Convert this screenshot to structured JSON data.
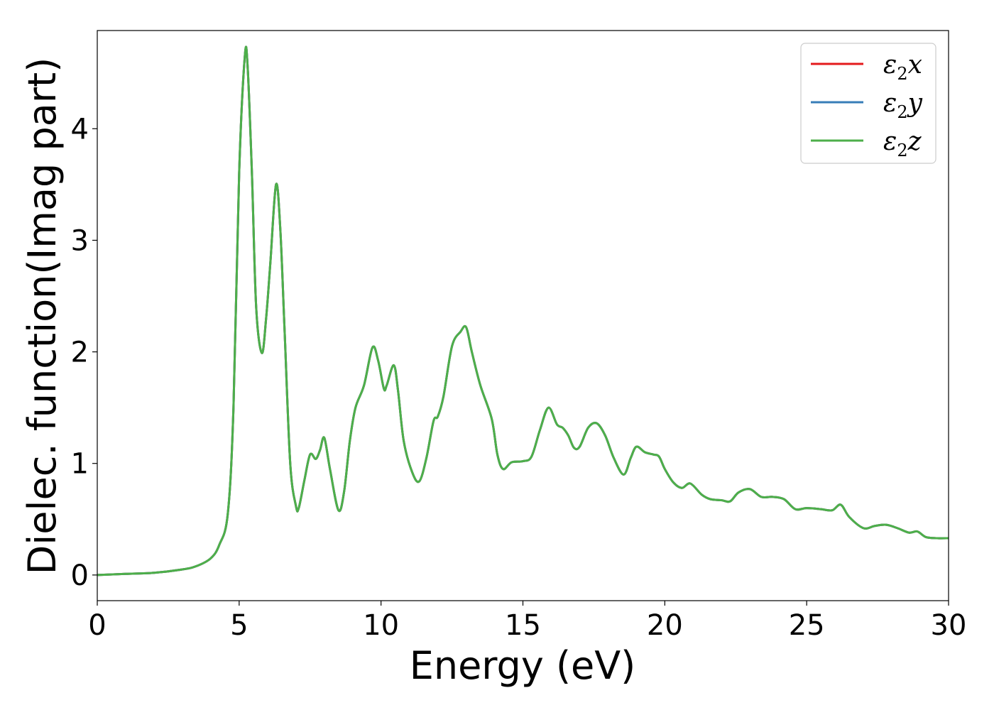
{
  "chart_data": {
    "type": "line",
    "xlabel": "Energy (eV)",
    "ylabel": "Dielec. function(Imag part)",
    "xlim": [
      0,
      30
    ],
    "ylim": [
      -0.23,
      4.88
    ],
    "xticks": [
      0,
      5,
      10,
      15,
      20,
      25,
      30
    ],
    "yticks": [
      0,
      1,
      2,
      3,
      4
    ],
    "grid": false,
    "legend_position": "top-right",
    "series": [
      {
        "name": "ε2x",
        "legend": {
          "symbol": "ε",
          "sub": "2",
          "axis": "x"
        },
        "color": "#e41a1c"
      },
      {
        "name": "ε2y",
        "legend": {
          "symbol": "ε",
          "sub": "2",
          "axis": "y"
        },
        "color": "#377eb8"
      },
      {
        "name": "ε2z",
        "legend": {
          "symbol": "ε",
          "sub": "2",
          "axis": "z"
        },
        "color": "#4daf4a"
      }
    ],
    "x": [
      0,
      1,
      2,
      3,
      3.5,
      4,
      4.3,
      4.6,
      4.8,
      5.0,
      5.2,
      5.3,
      5.45,
      5.6,
      5.8,
      5.95,
      6.1,
      6.3,
      6.45,
      6.6,
      6.8,
      7.0,
      7.1,
      7.3,
      7.5,
      7.7,
      7.85,
      8.0,
      8.2,
      8.5,
      8.7,
      8.9,
      9.1,
      9.4,
      9.7,
      9.9,
      10.1,
      10.2,
      10.45,
      10.6,
      10.8,
      11.1,
      11.35,
      11.6,
      11.85,
      12.0,
      12.2,
      12.5,
      12.8,
      13.0,
      13.2,
      13.5,
      13.9,
      14.1,
      14.3,
      14.6,
      15.0,
      15.3,
      15.6,
      15.9,
      16.2,
      16.4,
      16.6,
      16.8,
      17.0,
      17.3,
      17.6,
      17.9,
      18.2,
      18.55,
      18.8,
      19.0,
      19.3,
      19.6,
      19.8,
      20.0,
      20.3,
      20.6,
      20.9,
      21.3,
      21.6,
      22.0,
      22.3,
      22.6,
      23.0,
      23.4,
      23.8,
      24.2,
      24.6,
      25.0,
      25.5,
      25.9,
      26.2,
      26.5,
      27.0,
      27.4,
      27.8,
      28.2,
      28.6,
      28.9,
      29.2,
      29.6,
      30.0
    ],
    "values": [
      0.0,
      0.01,
      0.02,
      0.05,
      0.08,
      0.15,
      0.27,
      0.55,
      1.5,
      3.6,
      4.65,
      4.55,
      3.6,
      2.4,
      1.99,
      2.3,
      2.8,
      3.5,
      3.1,
      2.2,
      1.0,
      0.62,
      0.6,
      0.85,
      1.08,
      1.04,
      1.12,
      1.23,
      0.95,
      0.58,
      0.75,
      1.2,
      1.5,
      1.7,
      2.04,
      1.92,
      1.67,
      1.7,
      1.88,
      1.65,
      1.2,
      0.92,
      0.84,
      1.05,
      1.38,
      1.42,
      1.6,
      2.05,
      2.18,
      2.22,
      2.0,
      1.7,
      1.4,
      1.08,
      0.95,
      1.01,
      1.02,
      1.06,
      1.3,
      1.5,
      1.35,
      1.32,
      1.25,
      1.14,
      1.15,
      1.32,
      1.36,
      1.25,
      1.05,
      0.9,
      1.05,
      1.15,
      1.1,
      1.08,
      1.06,
      0.95,
      0.83,
      0.78,
      0.82,
      0.72,
      0.68,
      0.67,
      0.66,
      0.74,
      0.77,
      0.7,
      0.7,
      0.68,
      0.59,
      0.6,
      0.59,
      0.58,
      0.63,
      0.52,
      0.42,
      0.44,
      0.45,
      0.42,
      0.38,
      0.39,
      0.34,
      0.33,
      0.33
    ]
  }
}
